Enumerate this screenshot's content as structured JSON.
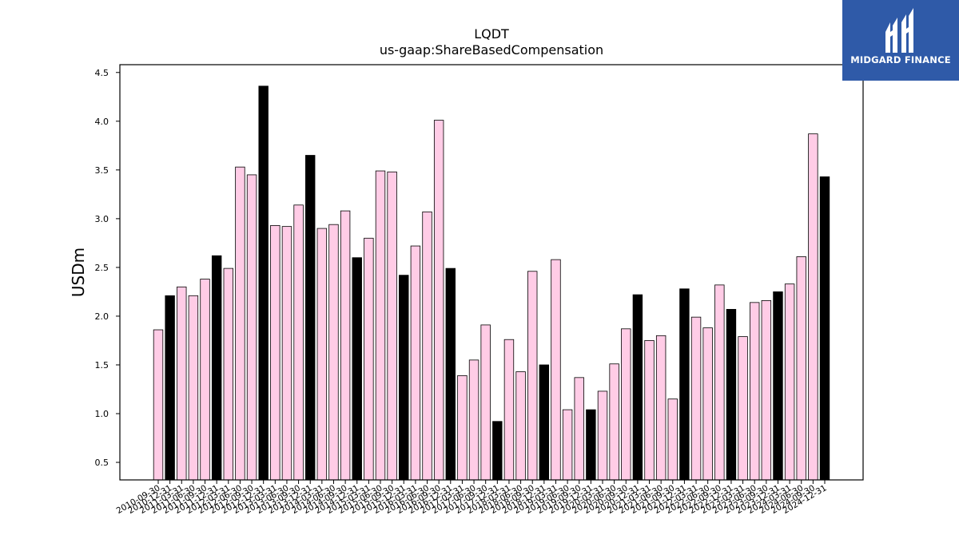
{
  "brand": {
    "name": "MIDGARD FINANCE",
    "logo_icon": "midgard-logo-icon",
    "bg_color": "#2f5aa8"
  },
  "chart_data": {
    "type": "bar",
    "title": "LQDT",
    "subtitle": "us-gaap:ShareBasedCompensation",
    "ylabel": "USDm",
    "xlabel": "",
    "ylim": [
      0.32,
      4.58
    ],
    "yticks": [
      "0.5",
      "1.0",
      "1.5",
      "2.0",
      "2.5",
      "3.0",
      "3.5",
      "4.0",
      "4.5"
    ],
    "grid": false,
    "legend": "none",
    "colors": {
      "quarter": "#ffcce6",
      "fiscal_year_end": "#000000",
      "edge": "#000000"
    },
    "categories": [
      "2010-09-30",
      "2010-12-31",
      "2011-03-31",
      "2011-06-30",
      "2011-09-30",
      "2011-12-31",
      "2012-03-31",
      "2012-06-30",
      "2012-09-30",
      "2012-12-31",
      "2013-03-31",
      "2013-06-30",
      "2013-09-30",
      "2013-12-31",
      "2014-03-31",
      "2014-06-30",
      "2014-09-30",
      "2014-12-31",
      "2015-03-31",
      "2015-06-30",
      "2015-09-30",
      "2015-12-31",
      "2016-03-31",
      "2016-06-30",
      "2016-09-30",
      "2016-12-31",
      "2017-03-31",
      "2017-06-30",
      "2017-09-30",
      "2017-12-31",
      "2018-03-31",
      "2018-06-30",
      "2018-09-30",
      "2018-12-31",
      "2019-03-31",
      "2019-06-30",
      "2019-09-30",
      "2019-12-31",
      "2020-03-31",
      "2020-06-30",
      "2020-09-30",
      "2020-12-31",
      "2021-03-31",
      "2021-06-30",
      "2021-09-30",
      "2021-12-31",
      "2022-03-31",
      "2022-06-30",
      "2022-09-30",
      "2022-12-31",
      "2023-03-31",
      "2023-06-30",
      "2023-09-30",
      "2023-12-31",
      "2024-03-31",
      "2024-06-30",
      "2024-09-30",
      "2024-12-31"
    ],
    "values": [
      1.86,
      2.21,
      2.3,
      2.21,
      2.38,
      2.62,
      2.49,
      3.53,
      3.45,
      4.36,
      2.93,
      2.92,
      3.14,
      3.65,
      2.9,
      2.94,
      3.08,
      2.6,
      2.8,
      3.49,
      3.48,
      2.42,
      2.72,
      3.07,
      4.01,
      2.49,
      1.39,
      1.55,
      1.91,
      0.92,
      1.76,
      1.43,
      2.46,
      1.5,
      2.58,
      1.04,
      1.37,
      1.04,
      1.23,
      1.51,
      1.87,
      2.22,
      1.75,
      1.8,
      1.15,
      2.28,
      1.99,
      1.88,
      2.32,
      2.07,
      1.79,
      2.14,
      2.16,
      2.25,
      2.33,
      2.61,
      3.87,
      3.43
    ],
    "fiscal_year_end": [
      false,
      true,
      false,
      false,
      false,
      true,
      false,
      false,
      false,
      true,
      false,
      false,
      false,
      true,
      false,
      false,
      false,
      true,
      false,
      false,
      false,
      true,
      false,
      false,
      false,
      true,
      false,
      false,
      false,
      true,
      false,
      false,
      false,
      true,
      false,
      false,
      false,
      true,
      false,
      false,
      false,
      true,
      false,
      false,
      false,
      true,
      false,
      false,
      false,
      true,
      false,
      false,
      false,
      true,
      false,
      false,
      false,
      true
    ]
  }
}
